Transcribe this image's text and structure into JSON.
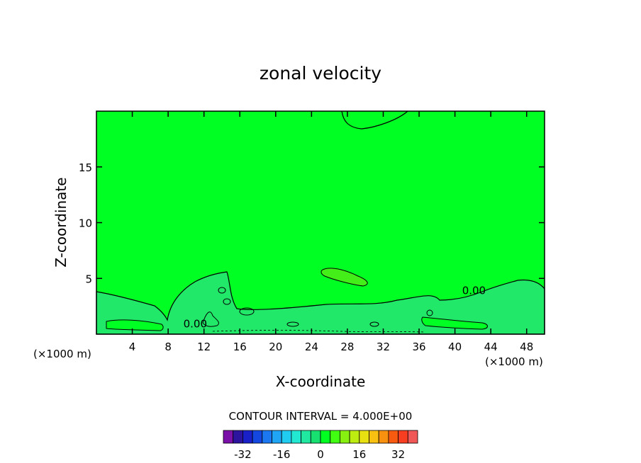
{
  "chart_data": {
    "type": "heatmap",
    "title": "zonal velocity",
    "xlabel": "X-coordinate",
    "ylabel": "Z-coordinate",
    "x_unit_left": "(×1000 m)",
    "x_unit_right": "(×1000 m)",
    "xlim": [
      0,
      50
    ],
    "ylim": [
      0,
      20
    ],
    "x_ticks": [
      4,
      8,
      12,
      16,
      20,
      24,
      28,
      32,
      36,
      40,
      44,
      48
    ],
    "y_ticks": [
      5,
      10,
      15
    ],
    "contour_interval_text": "CONTOUR INTERVAL = 4.000E+00",
    "contour_labels": [
      {
        "text": "0.00",
        "x": 40.8,
        "y": 3.6
      },
      {
        "text": "0.00",
        "x": 9.7,
        "y": 0.6
      }
    ],
    "colorbar": {
      "levels": [
        -40,
        -36,
        -32,
        -28,
        -24,
        -20,
        -16,
        -12,
        -8,
        -4,
        0,
        4,
        8,
        12,
        16,
        20,
        24,
        28,
        32,
        36,
        40
      ],
      "colors": [
        "#7a10a8",
        "#2d149e",
        "#1a20c8",
        "#1446e0",
        "#1c78f0",
        "#20a4f4",
        "#20ccf0",
        "#22e8d2",
        "#20e8a0",
        "#18e070",
        "#00ff20",
        "#40ff10",
        "#88f010",
        "#bcec10",
        "#e8e010",
        "#f8c010",
        "#f89010",
        "#f85a10",
        "#f83e20",
        "#f05858",
        "#f08c8c"
      ],
      "tick_labels": [
        "-32",
        "-16",
        "0",
        "16",
        "32"
      ],
      "tick_values": [
        -32,
        -16,
        0,
        16,
        32
      ]
    },
    "background_color": "#00ff22",
    "regions": [
      {
        "level": "0 to 4",
        "color": "#00ff22",
        "desc": "upper domain"
      },
      {
        "level": "-4 to 0",
        "color": "#22e86a",
        "desc": "near-surface layer below zero contour"
      },
      {
        "level": "4 to 8",
        "color": "#44ee18",
        "desc": "mid-level positive blob"
      }
    ]
  }
}
